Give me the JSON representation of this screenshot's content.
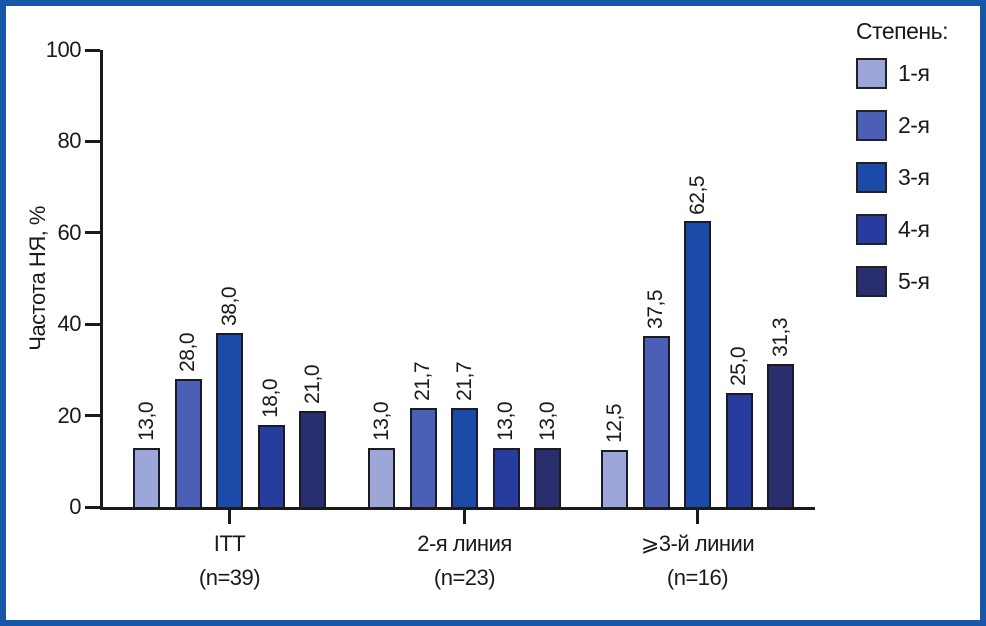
{
  "colors": {
    "frame_border": "#1857a8",
    "axis": "#1a1a1a",
    "bar_border": "#1b1b26",
    "text": "#1a1a1a"
  },
  "chart_data": {
    "type": "bar",
    "title": "",
    "ylabel": "Частота НЯ, %",
    "xlabel": "",
    "ylim": [
      0,
      100
    ],
    "yticks": [
      0,
      20,
      40,
      60,
      80,
      100
    ],
    "grid": false,
    "legend_title": "Степень:",
    "legend_position": "top-right",
    "categories": [
      {
        "label": "ITT",
        "sublabel": "(n=39)"
      },
      {
        "label": "2-я линия",
        "sublabel": "(n=23)"
      },
      {
        "label": "⩾3-й линии",
        "sublabel": "(n=16)"
      }
    ],
    "series": [
      {
        "name": "1-я",
        "color": "#9da6d8",
        "values": [
          13.0,
          13.0,
          12.5
        ],
        "labels": [
          "13,0",
          "13,0",
          "12,5"
        ]
      },
      {
        "name": "2-я",
        "color": "#4c5fb6",
        "values": [
          28.0,
          21.7,
          37.5
        ],
        "labels": [
          "28,0",
          "21,7",
          "37,5"
        ]
      },
      {
        "name": "3-я",
        "color": "#1c4aa9",
        "values": [
          38.0,
          21.7,
          62.5
        ],
        "labels": [
          "38,0",
          "21,7",
          "62,5"
        ]
      },
      {
        "name": "4-я",
        "color": "#263c9f",
        "values": [
          18.0,
          13.0,
          25.0
        ],
        "labels": [
          "18,0",
          "13,0",
          "25,0"
        ]
      },
      {
        "name": "5-я",
        "color": "#292e6e",
        "values": [
          21.0,
          13.0,
          31.3
        ],
        "labels": [
          "21,0",
          "13,0",
          "31,3"
        ]
      }
    ]
  }
}
